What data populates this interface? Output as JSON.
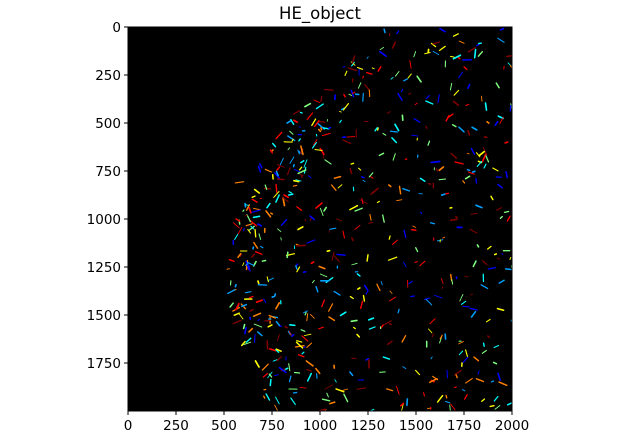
{
  "chart_data": {
    "type": "heatmap",
    "title": "HE_object",
    "xlabel": "",
    "ylabel": "",
    "xlim": [
      0,
      2000
    ],
    "ylim": [
      2000,
      0
    ],
    "x_ticks": [
      0,
      250,
      500,
      750,
      1000,
      1250,
      1500,
      1750,
      2000
    ],
    "y_ticks": [
      0,
      250,
      500,
      750,
      1000,
      1250,
      1500,
      1750
    ],
    "background_color": "#000000",
    "colormap": "jet",
    "grid": false,
    "legend": "none",
    "description_of_marks": "sparse short colored streaks on black",
    "colors": {
      "palette": [
        "#0000ff",
        "#00a0ff",
        "#00ffff",
        "#7fff7f",
        "#ffff00",
        "#ff8000",
        "#ff0000",
        "#800000"
      ]
    },
    "tissue_region": {
      "outer_boundary": [
        [
          1250,
          0
        ],
        [
          1050,
          280
        ],
        [
          750,
          520
        ],
        [
          580,
          800
        ],
        [
          520,
          1000
        ],
        [
          510,
          1250
        ],
        [
          560,
          1500
        ],
        [
          620,
          1750
        ],
        [
          720,
          2000
        ],
        [
          2000,
          2000
        ],
        [
          2000,
          0
        ]
      ],
      "dense_band_center": [
        [
          1150,
          300
        ],
        [
          850,
          650
        ],
        [
          650,
          1000
        ],
        [
          600,
          1250
        ],
        [
          700,
          1500
        ],
        [
          850,
          1750
        ]
      ]
    },
    "object_density": "sparse",
    "object_length_units": [
      8,
      45
    ]
  }
}
